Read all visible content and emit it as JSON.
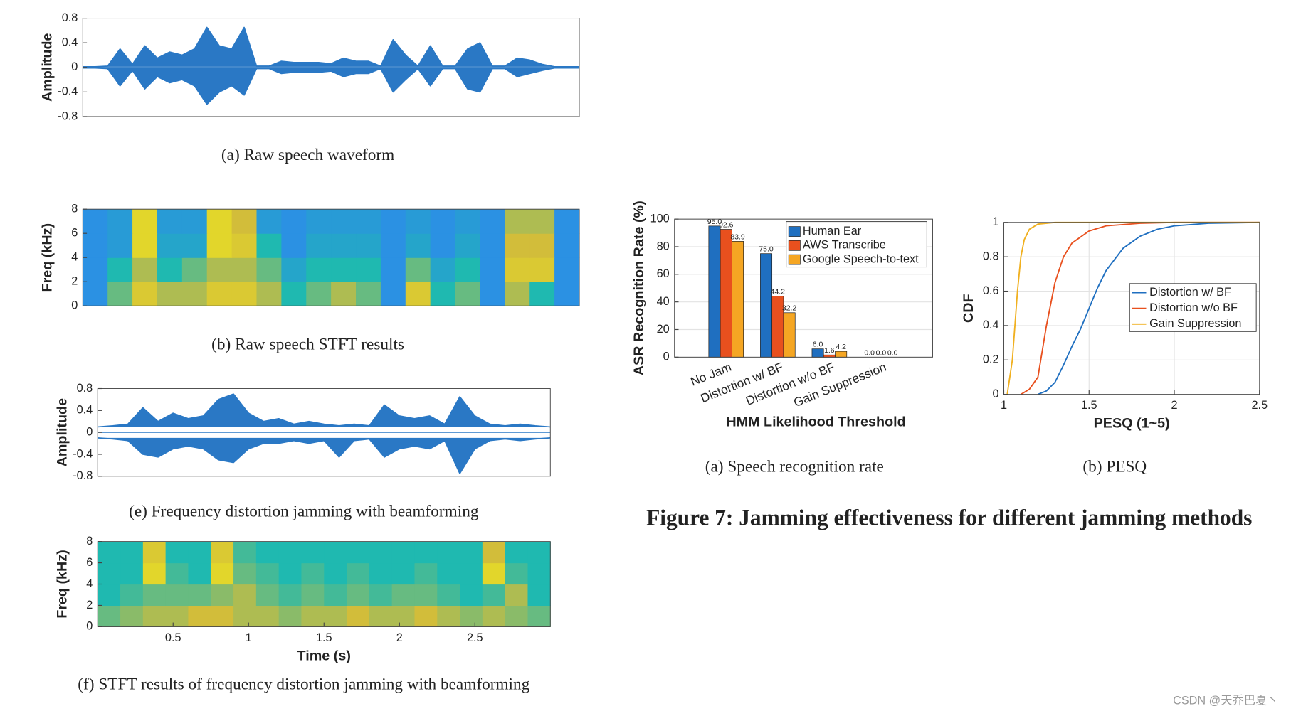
{
  "chart_data": [
    {
      "type": "waveform",
      "caption": "(a)  Raw speech waveform",
      "ylabel": "Amplitude",
      "color": "#2a78c5",
      "xlim": [
        0,
        3
      ],
      "ylim": [
        -0.8,
        0.8
      ],
      "yticks": [
        -0.8,
        -0.4,
        0,
        0.4,
        0.8
      ],
      "x": [
        0,
        0.075,
        0.15,
        0.225,
        0.3,
        0.375,
        0.45,
        0.525,
        0.6,
        0.675,
        0.75,
        0.825,
        0.9,
        0.975,
        1.05,
        1.125,
        1.2,
        1.275,
        1.35,
        1.425,
        1.5,
        1.575,
        1.65,
        1.725,
        1.8,
        1.875,
        1.95,
        2.025,
        2.1,
        2.175,
        2.25,
        2.325,
        2.4,
        2.475,
        2.55,
        2.625,
        2.7,
        2.775,
        2.85,
        2.925,
        3
      ],
      "upper": [
        0.01,
        0.01,
        0.02,
        0.3,
        0.05,
        0.35,
        0.15,
        0.25,
        0.2,
        0.3,
        0.65,
        0.35,
        0.3,
        0.65,
        0.02,
        0.02,
        0.1,
        0.08,
        0.08,
        0.08,
        0.06,
        0.15,
        0.1,
        0.1,
        0.02,
        0.45,
        0.2,
        0.02,
        0.35,
        0.02,
        0.02,
        0.3,
        0.4,
        0.02,
        0.02,
        0.15,
        0.12,
        0.05,
        0.01,
        0.01,
        0.01
      ],
      "lower": [
        -0.01,
        -0.01,
        -0.02,
        -0.3,
        -0.05,
        -0.35,
        -0.15,
        -0.25,
        -0.2,
        -0.3,
        -0.6,
        -0.4,
        -0.3,
        -0.45,
        -0.02,
        -0.02,
        -0.1,
        -0.08,
        -0.08,
        -0.08,
        -0.06,
        -0.15,
        -0.1,
        -0.1,
        -0.02,
        -0.4,
        -0.2,
        -0.02,
        -0.3,
        -0.02,
        -0.02,
        -0.35,
        -0.4,
        -0.02,
        -0.02,
        -0.15,
        -0.1,
        -0.05,
        -0.01,
        -0.01,
        -0.01
      ]
    },
    {
      "type": "heatmap",
      "caption": "(b)  Raw speech STFT results",
      "ylabel": "Freq (kHz)",
      "xlim": [
        0,
        3
      ],
      "ylim": [
        0,
        8
      ],
      "yticks": [
        0,
        2,
        4,
        6,
        8
      ],
      "colormap": [
        "#3e26a8",
        "#2e87f0",
        "#1fb9b0",
        "#d2bd3a",
        "#f9fb15"
      ],
      "z": [
        [
          0.3,
          0.6,
          0.8,
          0.7,
          0.7,
          0.8,
          0.8,
          0.7,
          0.5,
          0.6,
          0.7,
          0.6,
          0.3,
          0.8,
          0.5,
          0.6,
          0.3,
          0.7,
          0.5,
          0.3
        ],
        [
          0.3,
          0.5,
          0.7,
          0.5,
          0.6,
          0.7,
          0.7,
          0.6,
          0.4,
          0.5,
          0.5,
          0.5,
          0.3,
          0.6,
          0.4,
          0.5,
          0.3,
          0.8,
          0.8,
          0.3
        ],
        [
          0.3,
          0.35,
          0.85,
          0.4,
          0.4,
          0.85,
          0.8,
          0.5,
          0.3,
          0.4,
          0.4,
          0.4,
          0.3,
          0.4,
          0.3,
          0.4,
          0.3,
          0.75,
          0.75,
          0.3
        ],
        [
          0.3,
          0.35,
          0.85,
          0.35,
          0.35,
          0.85,
          0.75,
          0.35,
          0.3,
          0.35,
          0.35,
          0.35,
          0.3,
          0.35,
          0.3,
          0.35,
          0.3,
          0.7,
          0.7,
          0.3
        ]
      ]
    },
    {
      "type": "waveform",
      "caption": "(e)  Frequency distortion jamming with beamforming",
      "ylabel": "Amplitude",
      "color": "#2a78c5",
      "xlim": [
        0,
        3
      ],
      "ylim": [
        -0.8,
        0.8
      ],
      "yticks": [
        -0.8,
        -0.4,
        0,
        0.4,
        0.8
      ],
      "x": [
        0,
        0.1,
        0.2,
        0.3,
        0.4,
        0.5,
        0.6,
        0.7,
        0.8,
        0.9,
        1,
        1.1,
        1.2,
        1.3,
        1.4,
        1.5,
        1.6,
        1.7,
        1.8,
        1.9,
        2,
        2.1,
        2.2,
        2.3,
        2.4,
        2.5,
        2.6,
        2.7,
        2.8,
        2.9,
        3
      ],
      "upper": [
        0.1,
        0.12,
        0.15,
        0.45,
        0.2,
        0.35,
        0.25,
        0.3,
        0.6,
        0.7,
        0.35,
        0.2,
        0.25,
        0.15,
        0.2,
        0.15,
        0.12,
        0.15,
        0.12,
        0.5,
        0.3,
        0.25,
        0.3,
        0.15,
        0.65,
        0.3,
        0.15,
        0.12,
        0.15,
        0.12,
        0.1
      ],
      "lower": [
        -0.1,
        -0.12,
        -0.15,
        -0.4,
        -0.45,
        -0.3,
        -0.25,
        -0.3,
        -0.5,
        -0.55,
        -0.3,
        -0.2,
        -0.2,
        -0.15,
        -0.2,
        -0.15,
        -0.45,
        -0.15,
        -0.12,
        -0.45,
        -0.3,
        -0.25,
        -0.3,
        -0.15,
        -0.75,
        -0.3,
        -0.15,
        -0.12,
        -0.15,
        -0.12,
        -0.1
      ]
    },
    {
      "type": "heatmap",
      "caption": "(f)  STFT results of frequency distortion jamming with beamforming",
      "ylabel": "Freq (kHz)",
      "xlabel": "Time (s)",
      "xlim": [
        0,
        3
      ],
      "xticks": [
        0.5,
        1,
        1.5,
        2,
        2.5
      ],
      "ylim": [
        0,
        8
      ],
      "yticks": [
        0,
        2,
        4,
        6,
        8
      ],
      "colormap": [
        "#3e26a8",
        "#2e87f0",
        "#1fb9b0",
        "#d2bd3a",
        "#f9fb15"
      ],
      "z": [
        [
          0.6,
          0.65,
          0.7,
          0.7,
          0.75,
          0.75,
          0.7,
          0.7,
          0.65,
          0.7,
          0.7,
          0.75,
          0.7,
          0.7,
          0.75,
          0.7,
          0.65,
          0.7,
          0.65,
          0.6
        ],
        [
          0.5,
          0.55,
          0.6,
          0.6,
          0.6,
          0.65,
          0.7,
          0.6,
          0.55,
          0.6,
          0.55,
          0.6,
          0.55,
          0.6,
          0.6,
          0.55,
          0.5,
          0.55,
          0.7,
          0.5
        ],
        [
          0.5,
          0.5,
          0.85,
          0.55,
          0.5,
          0.85,
          0.6,
          0.55,
          0.5,
          0.55,
          0.5,
          0.55,
          0.5,
          0.5,
          0.55,
          0.5,
          0.5,
          0.85,
          0.55,
          0.5
        ],
        [
          0.5,
          0.5,
          0.8,
          0.5,
          0.5,
          0.8,
          0.55,
          0.5,
          0.5,
          0.5,
          0.5,
          0.5,
          0.5,
          0.5,
          0.5,
          0.5,
          0.5,
          0.75,
          0.5,
          0.5
        ]
      ]
    },
    {
      "type": "bar",
      "caption": "(a)  Speech recognition rate",
      "ylabel": "ASR Recognition Rate (%)",
      "xlabel": "HMM Likelihood Threshold",
      "categories": [
        "No Jam",
        "Distortion w/ BF",
        "Distortion w/o BF",
        "Gain Suppression"
      ],
      "series": [
        {
          "name": "Human Ear",
          "color": "#1f6fc0",
          "values": [
            95,
            75,
            6,
            0
          ],
          "value_labels": [
            "95.0",
            "75.0",
            "6.0",
            "0.0"
          ]
        },
        {
          "name": "AWS Transcribe",
          "color": "#e8501e",
          "values": [
            92.6,
            44.2,
            1.6,
            0
          ],
          "value_labels": [
            "92.6",
            "44.2",
            "1.6",
            "0.0"
          ]
        },
        {
          "name": "Google Speech-to-text",
          "color": "#f5a623",
          "values": [
            83.9,
            32.2,
            4.2,
            0
          ],
          "value_labels": [
            "83.9",
            "32.2",
            "4.2",
            "0.0"
          ]
        }
      ],
      "ylim": [
        0,
        100
      ],
      "yticks": [
        0,
        20,
        40,
        60,
        80,
        100
      ],
      "grid": true,
      "legend": "top-right"
    },
    {
      "type": "line",
      "caption": "(b)  PESQ",
      "ylabel": "CDF",
      "xlabel": "PESQ (1~5)",
      "xlim": [
        1,
        2.5
      ],
      "xticks": [
        1,
        1.5,
        2,
        2.5
      ],
      "ylim": [
        0,
        1
      ],
      "yticks": [
        0,
        0.2,
        0.4,
        0.6,
        0.8,
        1
      ],
      "grid": true,
      "legend": "right",
      "series": [
        {
          "name": "Distortion w/ BF",
          "color": "#1f6fc0",
          "x": [
            1.2,
            1.25,
            1.3,
            1.35,
            1.4,
            1.45,
            1.5,
            1.55,
            1.6,
            1.7,
            1.8,
            1.9,
            2,
            2.2,
            2.5
          ],
          "values": [
            0,
            0.02,
            0.07,
            0.17,
            0.28,
            0.38,
            0.5,
            0.62,
            0.72,
            0.85,
            0.92,
            0.96,
            0.98,
            0.995,
            1
          ]
        },
        {
          "name": "Distortion w/o BF",
          "color": "#e8501e",
          "x": [
            1.1,
            1.15,
            1.2,
            1.25,
            1.3,
            1.35,
            1.4,
            1.5,
            1.6,
            1.8,
            2,
            2.5
          ],
          "values": [
            0,
            0.03,
            0.1,
            0.4,
            0.65,
            0.8,
            0.88,
            0.95,
            0.98,
            0.995,
            1,
            1
          ]
        },
        {
          "name": "Gain Suppression",
          "color": "#f0b020",
          "x": [
            1.02,
            1.05,
            1.08,
            1.1,
            1.12,
            1.15,
            1.2,
            1.3,
            1.5,
            2.5
          ],
          "values": [
            0,
            0.2,
            0.6,
            0.8,
            0.9,
            0.96,
            0.99,
            1,
            1,
            1
          ]
        }
      ]
    }
  ],
  "figure_title": "Figure 7: Jamming effectiveness for different jamming methods",
  "watermark": "CSDN @天乔巴夏丶"
}
